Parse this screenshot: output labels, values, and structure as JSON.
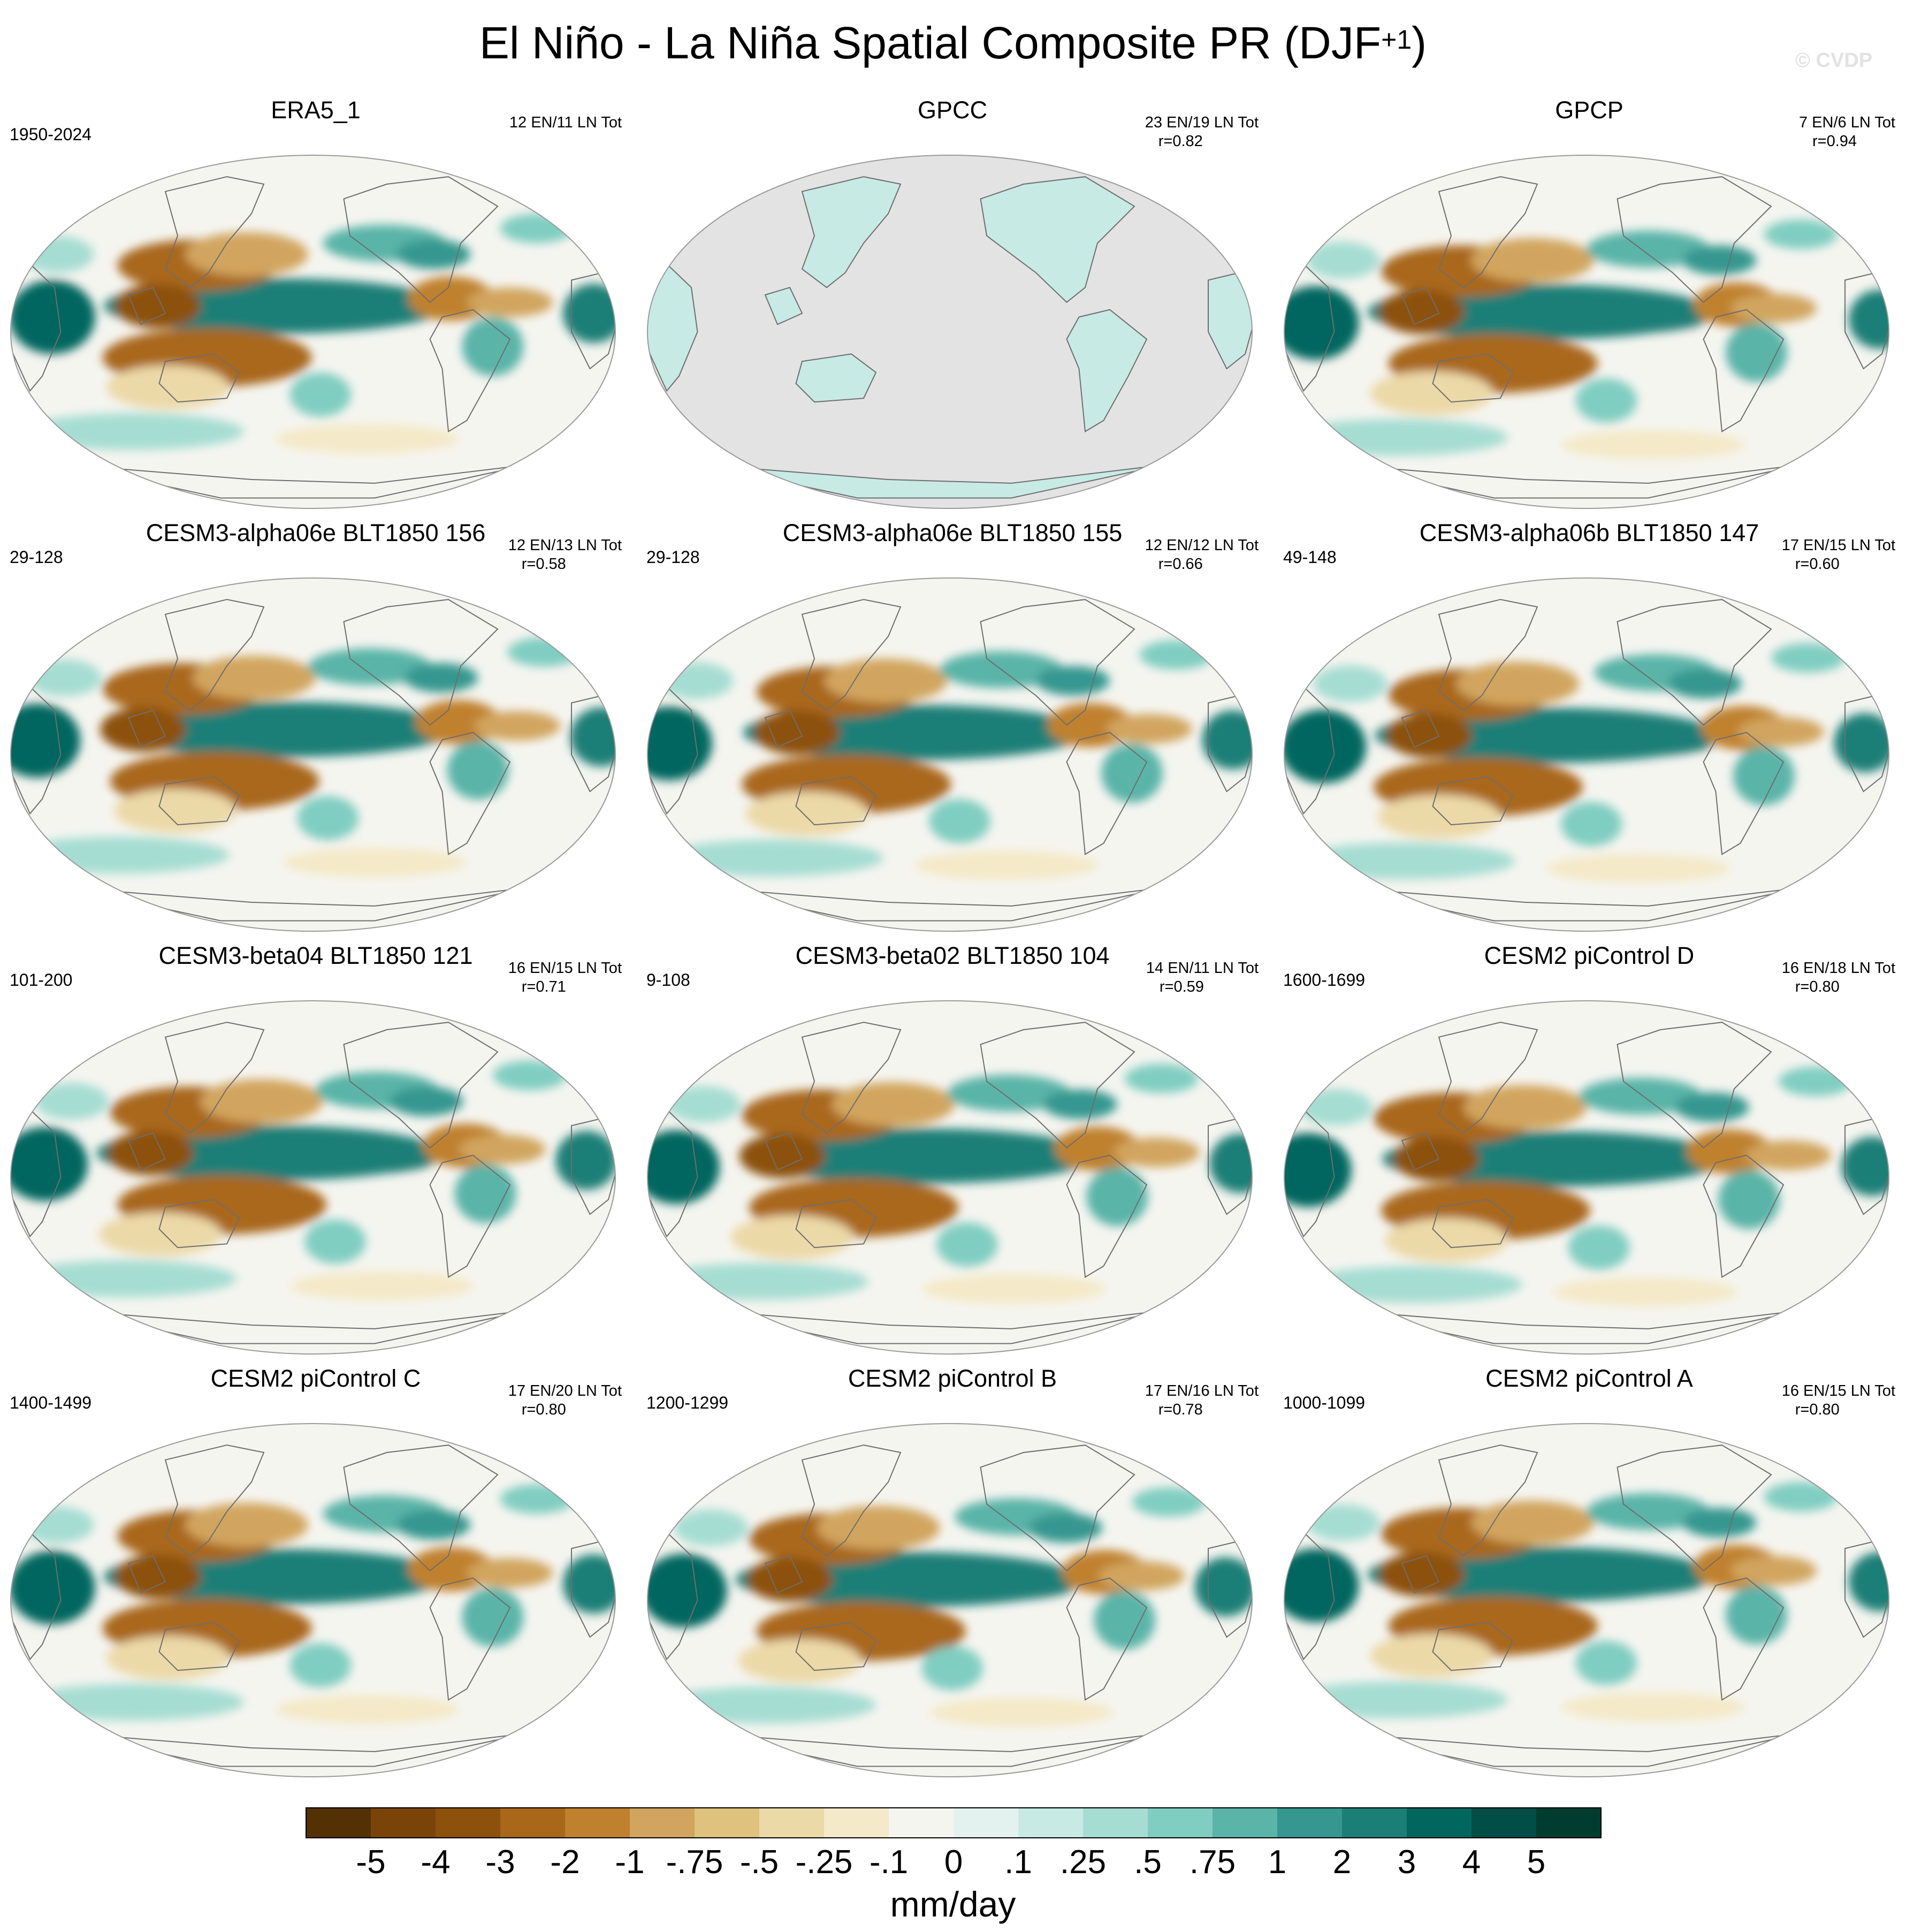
{
  "figure": {
    "title_main": "El Niño - La Niña Spatial Composite PR (DJF",
    "title_sup": "+1",
    "title_close": ")",
    "watermark": "© CVDP"
  },
  "chart_data": {
    "type": "heatmap",
    "variable": "PR",
    "season": "DJF+1",
    "units": "mm/day",
    "projection": "Robinson (global, Pacific-centered)",
    "panels": [
      {
        "title": "ERA5_1",
        "years": "1950-2024",
        "counts": "12 EN/11 LN Tot",
        "r": "",
        "land_only": false
      },
      {
        "title": "GPCC",
        "years": "",
        "counts": "23 EN/19 LN Tot",
        "r": "r=0.82",
        "land_only": true
      },
      {
        "title": "GPCP",
        "years": "",
        "counts": "7 EN/6 LN Tot",
        "r": "r=0.94",
        "land_only": false
      },
      {
        "title": "CESM3-alpha06e BLT1850 156",
        "years": "29-128",
        "counts": "12 EN/13 LN Tot",
        "r": "r=0.58",
        "land_only": false
      },
      {
        "title": "CESM3-alpha06e BLT1850 155",
        "years": "29-128",
        "counts": "12 EN/12 LN Tot",
        "r": "r=0.66",
        "land_only": false
      },
      {
        "title": "CESM3-alpha06b BLT1850 147",
        "years": "49-148",
        "counts": "17 EN/15 LN Tot",
        "r": "r=0.60",
        "land_only": false
      },
      {
        "title": "CESM3-beta04 BLT1850 121",
        "years": "101-200",
        "counts": "16 EN/15 LN Tot",
        "r": "r=0.71",
        "land_only": false
      },
      {
        "title": "CESM3-beta02 BLT1850 104",
        "years": "9-108",
        "counts": "14 EN/11 LN Tot",
        "r": "r=0.59",
        "land_only": false
      },
      {
        "title": "CESM2 piControl D",
        "years": "1600-1699",
        "counts": "16 EN/18 LN Tot",
        "r": "r=0.80",
        "land_only": false
      },
      {
        "title": "CESM2 piControl C",
        "years": "1400-1499",
        "counts": "17 EN/20 LN Tot",
        "r": "r=0.80",
        "land_only": false
      },
      {
        "title": "CESM2 piControl B",
        "years": "1200-1299",
        "counts": "17 EN/16 LN Tot",
        "r": "r=0.78",
        "land_only": false
      },
      {
        "title": "CESM2 piControl A",
        "years": "1000-1099",
        "counts": "16 EN/15 LN Tot",
        "r": "r=0.80",
        "land_only": false
      }
    ],
    "colorbar": {
      "label": "mm/day",
      "tick_labels": [
        "-5",
        "-4",
        "-3",
        "-2",
        "-1",
        "-.75",
        "-.5",
        "-.25",
        "-.1",
        "0",
        ".1",
        ".25",
        ".5",
        ".75",
        "1",
        "2",
        "3",
        "4",
        "5"
      ],
      "colors": [
        "#543005",
        "#7a4409",
        "#8c510a",
        "#a9671a",
        "#bf812d",
        "#d1a55f",
        "#dfc27d",
        "#ecd9a8",
        "#f4e9c8",
        "#f5f5f0",
        "#e4f2ef",
        "#c7eae5",
        "#a6ddd3",
        "#80cdc1",
        "#5ab4a8",
        "#35978f",
        "#1c7f77",
        "#01665e",
        "#004e45",
        "#003c30"
      ]
    }
  },
  "style": {
    "map_background": "#f5f5f0",
    "land_mask_fill": "#e3e3e3",
    "map_outline": "#9a9a9a",
    "coast_color": "#6e6e6e"
  }
}
